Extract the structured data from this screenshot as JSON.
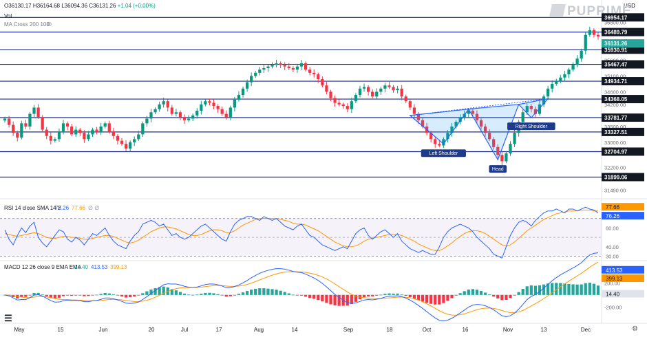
{
  "header": {
    "symbol_prefix": "",
    "open": "O36130.17",
    "high": "H36164.68",
    "low": "L36094.36",
    "close": "C36131.26",
    "change": "+1.04 (+0.00%)",
    "vol": "Vol",
    "ma": "MA Cross 200 100",
    "currency": "USD",
    "logo": "PUPRIME"
  },
  "chart_data": [
    {
      "type": "candlestick",
      "y_ticks": [
        31490,
        32200,
        33000,
        33500,
        34200,
        34600,
        35100,
        35600,
        36800
      ],
      "y_tick_labels": [
        "31490.00",
        "32200.00",
        "33000.00",
        "33500.00",
        "34200.00",
        "34600.00",
        "35100.00",
        "35600.00",
        "36800.00"
      ],
      "ylim": [
        31300,
        37200
      ],
      "x_tick_labels": [
        "May",
        "15",
        "Jun",
        "20",
        "Jul",
        "17",
        "Aug",
        "14",
        "Sep",
        "18",
        "Oct",
        "16",
        "Nov",
        "13",
        "Dec"
      ],
      "levels": [
        36954.17,
        36489.79,
        35930.91,
        35467.47,
        34934.71,
        34368.05,
        33781.77,
        33327.51,
        32704.97,
        31899.06
      ],
      "level_labels": [
        "36954.17",
        "36489.79",
        "35930.91",
        "35467.47",
        "34934.71",
        "34368.05",
        "33781.77",
        "33327.51",
        "32704.97",
        "31899.06"
      ],
      "current_price": "36131.26",
      "closes": [
        33750,
        33550,
        33300,
        33150,
        33600,
        33500,
        33900,
        34100,
        33800,
        33400,
        33200,
        33050,
        33100,
        33350,
        33600,
        33500,
        33250,
        33400,
        33300,
        33100,
        33250,
        33400,
        33350,
        33500,
        33600,
        33350,
        33200,
        33050,
        32950,
        32800,
        33000,
        33100,
        33250,
        33600,
        33750,
        33950,
        34050,
        34200,
        34300,
        34100,
        33900,
        33950,
        33800,
        33700,
        33750,
        33850,
        34000,
        34200,
        34300,
        34250,
        34150,
        34050,
        33900,
        33800,
        34100,
        34350,
        34500,
        34700,
        34900,
        35100,
        35200,
        35300,
        35350,
        35400,
        35450,
        35500,
        35450,
        35400,
        35350,
        35300,
        35400,
        35500,
        35300,
        35200,
        35150,
        35000,
        34800,
        34600,
        34400,
        34250,
        34200,
        34150,
        34050,
        34300,
        34500,
        34700,
        34750,
        34600,
        34450,
        34600,
        34700,
        34800,
        34750,
        34650,
        34700,
        34450,
        34300,
        34100,
        33900,
        33700,
        33500,
        33300,
        33100,
        32950,
        32900,
        33100,
        33300,
        33500,
        33650,
        33800,
        33900,
        34000,
        33900,
        33700,
        33500,
        33300,
        33100,
        32850,
        32600,
        32400,
        32650,
        32950,
        33300,
        33650,
        33950,
        34150,
        34050,
        33900,
        34200,
        34450,
        34700,
        34850,
        34950,
        35050,
        35150,
        35300,
        35450,
        35650,
        35900,
        36400,
        36550,
        36400,
        36350
      ],
      "annotations": [
        "Left Shoulder",
        "Head",
        "Right Shoulder"
      ]
    },
    {
      "type": "line",
      "title": "RSI 14 close SMA 14 2",
      "series": [
        {
          "name": "RSI",
          "last": "76.26"
        },
        {
          "name": "SMA",
          "last": "77.66"
        }
      ],
      "values_rsi": [
        58,
        48,
        42,
        52,
        60,
        55,
        62,
        66,
        50,
        44,
        40,
        46,
        52,
        58,
        56,
        48,
        45,
        50,
        47,
        42,
        48,
        54,
        52,
        56,
        60,
        52,
        46,
        42,
        40,
        38,
        46,
        52,
        56,
        64,
        66,
        68,
        66,
        62,
        64,
        58,
        52,
        54,
        50,
        48,
        50,
        54,
        58,
        62,
        64,
        60,
        56,
        52,
        48,
        46,
        56,
        64,
        68,
        70,
        72,
        72,
        70,
        68,
        72,
        70,
        68,
        70,
        66,
        62,
        60,
        58,
        62,
        64,
        58,
        52,
        50,
        46,
        42,
        40,
        38,
        36,
        38,
        40,
        38,
        46,
        54,
        58,
        60,
        52,
        48,
        52,
        56,
        58,
        54,
        50,
        54,
        46,
        42,
        38,
        36,
        34,
        36,
        34,
        32,
        32,
        40,
        50,
        56,
        60,
        62,
        64,
        62,
        60,
        56,
        50,
        46,
        42,
        38,
        32,
        30,
        28,
        40,
        52,
        60,
        66,
        68,
        66,
        62,
        68,
        72,
        76,
        78,
        78,
        80,
        78,
        76,
        80,
        80,
        78,
        80,
        82,
        80,
        79,
        76
      ],
      "values_sma": [
        54,
        53,
        52,
        51,
        52,
        53,
        54,
        55,
        54,
        52,
        50,
        49,
        49,
        50,
        51,
        51,
        50,
        50,
        49,
        48,
        48,
        49,
        50,
        51,
        52,
        52,
        51,
        49,
        47,
        45,
        44,
        45,
        47,
        50,
        53,
        56,
        58,
        60,
        61,
        61,
        60,
        59,
        57,
        55,
        53,
        52,
        52,
        53,
        55,
        57,
        58,
        58,
        57,
        55,
        55,
        57,
        60,
        63,
        65,
        67,
        69,
        70,
        70,
        70,
        70,
        70,
        69,
        68,
        67,
        65,
        64,
        64,
        63,
        61,
        59,
        57,
        54,
        51,
        48,
        45,
        43,
        41,
        40,
        40,
        41,
        43,
        46,
        48,
        49,
        50,
        51,
        52,
        53,
        53,
        53,
        52,
        50,
        48,
        46,
        43,
        41,
        39,
        37,
        36,
        36,
        38,
        41,
        44,
        48,
        51,
        54,
        56,
        57,
        57,
        56,
        54,
        51,
        48,
        45,
        42,
        41,
        42,
        45,
        49,
        53,
        57,
        60,
        63,
        66,
        69,
        71,
        73,
        75,
        76,
        77,
        78,
        78,
        78,
        79,
        79,
        79,
        78,
        78
      ],
      "y_tick_labels": [
        "30.00",
        "40.00",
        "60.00"
      ],
      "y_ticks": [
        30,
        40,
        60
      ],
      "ylim": [
        26,
        88
      ],
      "band": [
        30,
        70
      ]
    },
    {
      "type": "bar",
      "title": "MACD 12 26 close 9 EMA EMA",
      "series": [
        {
          "name": "Histogram",
          "last": "14.40"
        },
        {
          "name": "MACD",
          "last": "413.53"
        },
        {
          "name": "Signal",
          "last": "399.13"
        }
      ],
      "y_tick_labels": [
        "200.00",
        "-200.00"
      ],
      "y_ticks": [
        200,
        -200
      ],
      "ylim": [
        -300,
        560
      ]
    }
  ]
}
